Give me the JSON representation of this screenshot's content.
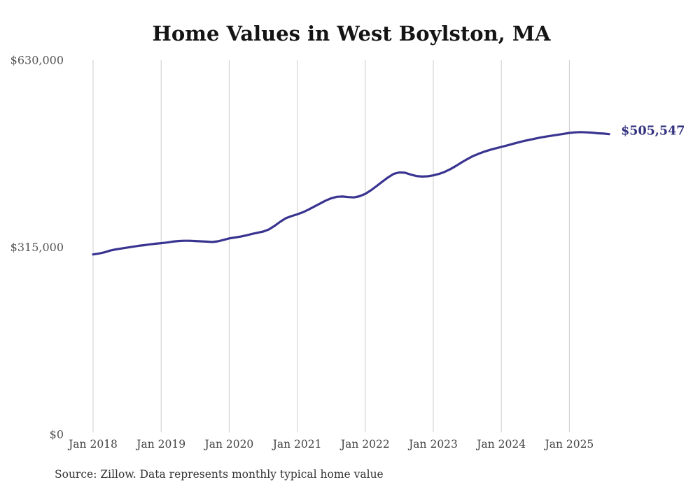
{
  "chart_data": {
    "type": "line",
    "title": "Home Values in West Boylston, MA",
    "source_note": "Source: Zillow. Data represents monthly typical home value",
    "series_name": "Typical home value",
    "frequency": "monthly",
    "x_start": "2018-01",
    "x_end": "2025-08",
    "end_label": "$505,547",
    "end_value": 505547,
    "xticks": [
      "Jan 2018",
      "Jan 2019",
      "Jan 2020",
      "Jan 2021",
      "Jan 2022",
      "Jan 2023",
      "Jan 2024",
      "Jan 2025"
    ],
    "yticks": [
      {
        "label": "$630,000",
        "value": 630000
      },
      {
        "label": "$315,000",
        "value": 315000
      },
      {
        "label": "$0",
        "value": 0
      }
    ],
    "ylim": [
      0,
      630000
    ],
    "grid": "vertical-only",
    "legend": "none",
    "colors": {
      "line": "#3a3491",
      "end_label": "#32317f",
      "grid": "#cccccc",
      "title": "#141414",
      "ytick_labels": "#555555",
      "xtick_labels": "#444444",
      "source": "#333333",
      "background": "#ffffff"
    },
    "values": [
      303000,
      304500,
      306500,
      309500,
      311500,
      313000,
      314500,
      316000,
      317500,
      318500,
      320000,
      321000,
      322000,
      323000,
      324500,
      325500,
      326000,
      326000,
      325500,
      325000,
      324500,
      324000,
      325000,
      327500,
      330000,
      331500,
      333000,
      335000,
      337500,
      339500,
      341500,
      345000,
      351000,
      358000,
      364000,
      367500,
      370500,
      374000,
      378500,
      383500,
      388500,
      393500,
      397500,
      400000,
      400500,
      399500,
      399000,
      401000,
      405000,
      411000,
      418000,
      425500,
      432500,
      438500,
      441000,
      440500,
      437500,
      435000,
      434000,
      434500,
      436000,
      438500,
      442000,
      446500,
      452000,
      458000,
      463500,
      468500,
      472500,
      476000,
      479000,
      481500,
      484000,
      486500,
      489000,
      491500,
      494000,
      496000,
      498000,
      500000,
      501500,
      503000,
      504500,
      506000,
      507500,
      508500,
      509000,
      508500,
      508000,
      507000,
      506500,
      505547
    ]
  }
}
